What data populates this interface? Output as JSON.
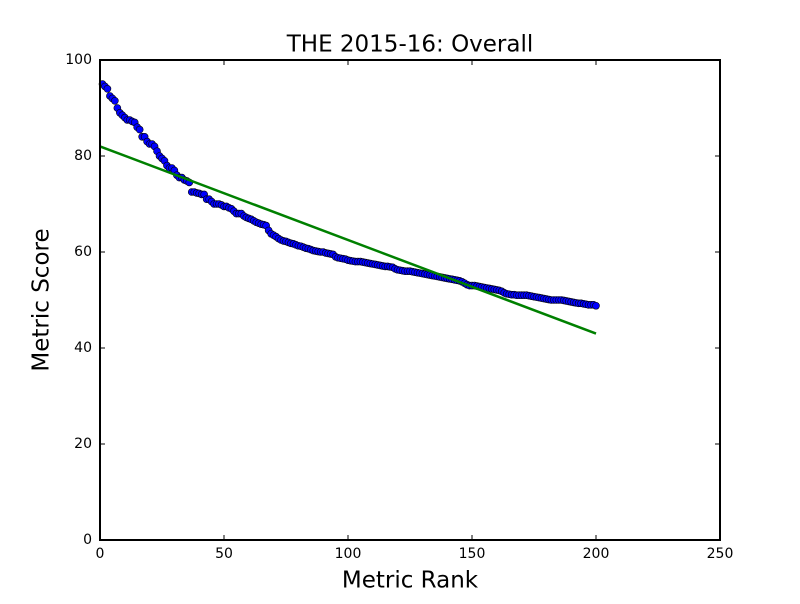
{
  "chart_data": {
    "type": "scatter",
    "title": "THE 2015-16: Overall",
    "x_label": "Metric Rank",
    "y_label": "Metric Score",
    "xlim": [
      0,
      250
    ],
    "ylim": [
      0,
      100
    ],
    "xticks": [
      0,
      50,
      100,
      150,
      200,
      250
    ],
    "yticks": [
      0,
      20,
      40,
      60,
      80,
      100
    ],
    "grid": false,
    "series": [
      {
        "type": "scatter",
        "color": "#0000ff",
        "x": [
          1,
          2,
          3,
          4,
          5,
          6,
          7,
          8,
          9,
          10,
          11,
          12,
          13,
          14,
          15,
          16,
          17,
          18,
          19,
          20,
          21,
          22,
          23,
          24,
          25,
          26,
          27,
          28,
          29,
          30,
          31,
          32,
          33,
          34,
          35,
          36,
          37,
          38,
          39,
          40,
          41,
          42,
          43,
          44,
          45,
          46,
          47,
          48,
          49,
          50,
          51,
          52,
          53,
          54,
          55,
          56,
          57,
          58,
          59,
          60,
          61,
          62,
          63,
          64,
          65,
          66,
          67,
          68,
          69,
          70,
          71,
          72,
          73,
          74,
          75,
          76,
          77,
          78,
          79,
          80,
          81,
          82,
          83,
          84,
          85,
          86,
          87,
          88,
          89,
          90,
          91,
          92,
          93,
          94,
          95,
          96,
          97,
          98,
          99,
          100,
          101,
          102,
          103,
          104,
          105,
          106,
          107,
          108,
          109,
          110,
          111,
          112,
          113,
          114,
          115,
          116,
          117,
          118,
          119,
          120,
          121,
          122,
          123,
          124,
          125,
          126,
          127,
          128,
          129,
          130,
          131,
          132,
          133,
          134,
          135,
          136,
          137,
          138,
          139,
          140,
          141,
          142,
          143,
          144,
          145,
          146,
          147,
          148,
          149,
          150,
          151,
          152,
          153,
          154,
          155,
          156,
          157,
          158,
          159,
          160,
          161,
          162,
          163,
          164,
          165,
          166,
          167,
          168,
          169,
          170,
          171,
          172,
          173,
          174,
          175,
          176,
          177,
          178,
          179,
          180,
          181,
          182,
          183,
          184,
          185,
          186,
          187,
          188,
          189,
          190,
          191,
          192,
          193,
          194,
          195,
          196,
          197,
          198,
          199,
          200
        ],
        "values": [
          95,
          94.5,
          94,
          92.5,
          92,
          91.5,
          90,
          89,
          88.5,
          88,
          87.5,
          87.5,
          87.2,
          87,
          86,
          85.5,
          84,
          84,
          83,
          82.5,
          82.5,
          82,
          81,
          80,
          79.5,
          79,
          78,
          77.5,
          77.5,
          77,
          76,
          75.5,
          75.5,
          75,
          74.8,
          74.5,
          72.5,
          72.5,
          72.3,
          72.2,
          72,
          72,
          71,
          71,
          70.5,
          70,
          70,
          70,
          69.8,
          69.5,
          69.5,
          69.2,
          69,
          68.5,
          68,
          68,
          68,
          67.5,
          67.2,
          67,
          66.8,
          66.5,
          66.2,
          66,
          65.8,
          65.7,
          65.5,
          64.5,
          63.8,
          63.5,
          63.2,
          62.8,
          62.5,
          62.3,
          62.2,
          62,
          61.8,
          61.7,
          61.5,
          61.3,
          61.2,
          61,
          60.8,
          60.7,
          60.5,
          60.3,
          60.2,
          60.1,
          60,
          60,
          59.8,
          59.7,
          59.6,
          59.5,
          59,
          58.8,
          58.7,
          58.6,
          58.5,
          58.3,
          58.2,
          58.1,
          58,
          58,
          58,
          57.9,
          57.8,
          57.7,
          57.6,
          57.5,
          57.4,
          57.3,
          57.2,
          57.1,
          57,
          57,
          56.9,
          56.8,
          56.5,
          56.3,
          56.2,
          56.1,
          56,
          56,
          56,
          55.9,
          55.8,
          55.7,
          55.6,
          55.5,
          55.4,
          55.3,
          55.2,
          55.1,
          55,
          54.9,
          54.8,
          54.7,
          54.6,
          54.5,
          54.4,
          54.3,
          54.2,
          54.1,
          54,
          53.8,
          53.5,
          53.2,
          53,
          53,
          53,
          52.9,
          52.8,
          52.7,
          52.6,
          52.5,
          52.4,
          52.3,
          52.2,
          52.1,
          52,
          51.8,
          51.5,
          51.3,
          51.2,
          51.1,
          51.1,
          51,
          51,
          51,
          51,
          51,
          50.9,
          50.8,
          50.7,
          50.6,
          50.5,
          50.4,
          50.3,
          50.2,
          50.1,
          50,
          50,
          50,
          50,
          50,
          49.9,
          49.8,
          49.7,
          49.6,
          49.5,
          49.4,
          49.3,
          49.3,
          49.2,
          49.1,
          49,
          49,
          49,
          48.8
        ]
      },
      {
        "type": "line",
        "color": "#008000",
        "x": [
          0,
          200
        ],
        "values": [
          82,
          43
        ]
      }
    ]
  }
}
